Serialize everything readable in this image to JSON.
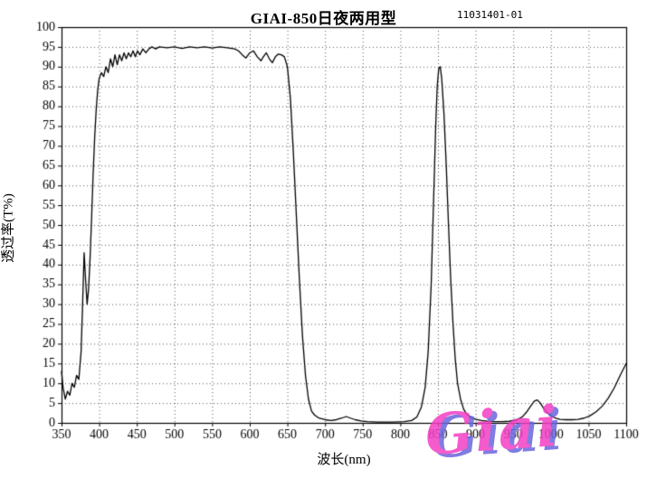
{
  "header": {
    "title": "GIAI-850日夜两用型",
    "serial": "11031401-01"
  },
  "logo": {
    "text": "Giai"
  },
  "chart_data": {
    "type": "line",
    "title": "GIAI-850日夜两用型",
    "subtitle": "11031401-01",
    "xlabel": "波长(nm)",
    "ylabel": "透过率(T%)",
    "xlim": [
      350,
      1100
    ],
    "ylim": [
      0,
      100
    ],
    "x_ticks": [
      350,
      400,
      450,
      500,
      550,
      600,
      650,
      700,
      750,
      800,
      850,
      900,
      950,
      1000,
      1050,
      1100
    ],
    "y_ticks": [
      0,
      5,
      10,
      15,
      20,
      25,
      30,
      35,
      40,
      45,
      50,
      55,
      60,
      65,
      70,
      75,
      80,
      85,
      90,
      95,
      100
    ],
    "grid": "dotted",
    "legend": "none",
    "line_color": "#000000",
    "series": [
      {
        "name": "transmittance",
        "points": [
          [
            350,
            13
          ],
          [
            352,
            9
          ],
          [
            355,
            6
          ],
          [
            358,
            8
          ],
          [
            361,
            7
          ],
          [
            364,
            10
          ],
          [
            367,
            9
          ],
          [
            370,
            12
          ],
          [
            373,
            11
          ],
          [
            376,
            18
          ],
          [
            378,
            30
          ],
          [
            380,
            43
          ],
          [
            382,
            36
          ],
          [
            384,
            30
          ],
          [
            386,
            34
          ],
          [
            388,
            42
          ],
          [
            390,
            52
          ],
          [
            392,
            63
          ],
          [
            394,
            72
          ],
          [
            396,
            79
          ],
          [
            398,
            84
          ],
          [
            400,
            87
          ],
          [
            403,
            88.5
          ],
          [
            406,
            87.5
          ],
          [
            409,
            90
          ],
          [
            412,
            88.5
          ],
          [
            415,
            92
          ],
          [
            418,
            90
          ],
          [
            421,
            93
          ],
          [
            424,
            90.5
          ],
          [
            427,
            93
          ],
          [
            430,
            91.5
          ],
          [
            433,
            93.5
          ],
          [
            436,
            92
          ],
          [
            439,
            93.5
          ],
          [
            442,
            92.5
          ],
          [
            445,
            94
          ],
          [
            448,
            92.5
          ],
          [
            451,
            94
          ],
          [
            454,
            93
          ],
          [
            458,
            94.5
          ],
          [
            462,
            93.5
          ],
          [
            466,
            94.5
          ],
          [
            470,
            95
          ],
          [
            475,
            94.5
          ],
          [
            480,
            95
          ],
          [
            490,
            94.8
          ],
          [
            500,
            95
          ],
          [
            510,
            94.6
          ],
          [
            520,
            95
          ],
          [
            530,
            94.8
          ],
          [
            540,
            95
          ],
          [
            550,
            94.7
          ],
          [
            560,
            95
          ],
          [
            570,
            94.8
          ],
          [
            580,
            94.5
          ],
          [
            585,
            94
          ],
          [
            590,
            93
          ],
          [
            595,
            92.2
          ],
          [
            600,
            93.5
          ],
          [
            605,
            94
          ],
          [
            610,
            92.5
          ],
          [
            615,
            91.5
          ],
          [
            618,
            92.5
          ],
          [
            622,
            93.5
          ],
          [
            626,
            92
          ],
          [
            630,
            91
          ],
          [
            634,
            92.5
          ],
          [
            638,
            93.2
          ],
          [
            642,
            93
          ],
          [
            646,
            92.5
          ],
          [
            650,
            90
          ],
          [
            654,
            82
          ],
          [
            658,
            68
          ],
          [
            662,
            52
          ],
          [
            666,
            36
          ],
          [
            670,
            22
          ],
          [
            674,
            12
          ],
          [
            678,
            6
          ],
          [
            682,
            3
          ],
          [
            686,
            2
          ],
          [
            692,
            1.2
          ],
          [
            700,
            0.8
          ],
          [
            708,
            0.6
          ],
          [
            715,
            0.8
          ],
          [
            722,
            1.2
          ],
          [
            728,
            1.6
          ],
          [
            734,
            1.2
          ],
          [
            740,
            0.8
          ],
          [
            748,
            0.5
          ],
          [
            756,
            0.3
          ],
          [
            770,
            0.2
          ],
          [
            790,
            0.2
          ],
          [
            805,
            0.3
          ],
          [
            815,
            0.6
          ],
          [
            822,
            1.5
          ],
          [
            828,
            4
          ],
          [
            833,
            9
          ],
          [
            837,
            18
          ],
          [
            841,
            35
          ],
          [
            844,
            55
          ],
          [
            847,
            75
          ],
          [
            849,
            85
          ],
          [
            851,
            89.5
          ],
          [
            853,
            90
          ],
          [
            855,
            87
          ],
          [
            858,
            78
          ],
          [
            861,
            65
          ],
          [
            864,
            50
          ],
          [
            867,
            36
          ],
          [
            870,
            25
          ],
          [
            873,
            16
          ],
          [
            876,
            10
          ],
          [
            880,
            6
          ],
          [
            884,
            3.5
          ],
          [
            888,
            2.2
          ],
          [
            893,
            1.4
          ],
          [
            900,
            0.9
          ],
          [
            908,
            0.6
          ],
          [
            916,
            0.4
          ],
          [
            925,
            0.3
          ],
          [
            935,
            0.3
          ],
          [
            945,
            0.4
          ],
          [
            955,
            0.8
          ],
          [
            962,
            1.5
          ],
          [
            968,
            2.8
          ],
          [
            973,
            4.2
          ],
          [
            978,
            5.5
          ],
          [
            982,
            5.8
          ],
          [
            986,
            5
          ],
          [
            990,
            3.8
          ],
          [
            995,
            2.6
          ],
          [
            1000,
            1.8
          ],
          [
            1006,
            1.2
          ],
          [
            1012,
            0.9
          ],
          [
            1020,
            0.8
          ],
          [
            1028,
            0.8
          ],
          [
            1036,
            0.9
          ],
          [
            1044,
            1.2
          ],
          [
            1052,
            1.8
          ],
          [
            1060,
            2.8
          ],
          [
            1068,
            4.2
          ],
          [
            1076,
            6.2
          ],
          [
            1084,
            8.8
          ],
          [
            1092,
            12
          ],
          [
            1100,
            15
          ]
        ]
      }
    ]
  }
}
